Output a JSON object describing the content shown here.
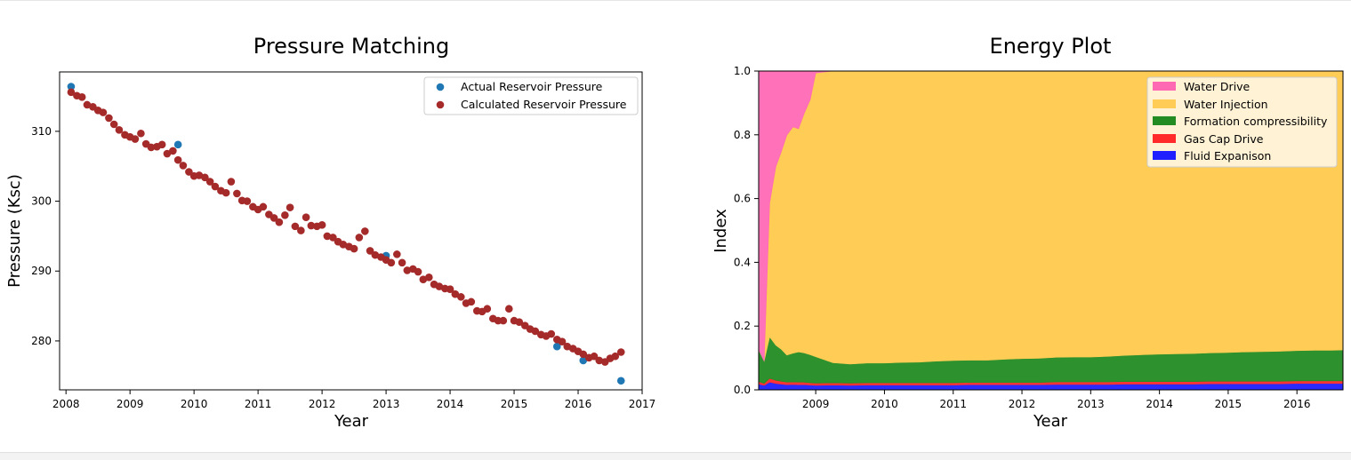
{
  "chart_data": [
    {
      "type": "scatter",
      "title": "Pressure Matching",
      "xlabel": "Year",
      "ylabel": "Pressure (Ksc)",
      "xlim": [
        2007.9,
        2017.0
      ],
      "ylim": [
        273.0,
        318.5
      ],
      "x_ticks": [
        2008,
        2009,
        2010,
        2011,
        2012,
        2013,
        2014,
        2015,
        2016,
        2017
      ],
      "y_ticks": [
        280,
        290,
        300,
        310
      ],
      "legend_position": "top-right",
      "series": [
        {
          "name": "Actual Reservoir Pressure",
          "color": "#1f77b4",
          "x": [
            2008.08,
            2009.75,
            2013.0,
            2015.67,
            2016.08,
            2016.67
          ],
          "y": [
            316.4,
            308.1,
            292.2,
            279.2,
            277.2,
            274.3
          ]
        },
        {
          "name": "Calculated Reservoir Pressure",
          "color": "#a52a2a",
          "x": [
            2008.08,
            2008.17,
            2008.25,
            2008.33,
            2008.42,
            2008.5,
            2008.58,
            2008.67,
            2008.75,
            2008.83,
            2008.92,
            2009.0,
            2009.08,
            2009.17,
            2009.25,
            2009.33,
            2009.42,
            2009.5,
            2009.58,
            2009.67,
            2009.75,
            2009.83,
            2009.92,
            2010.0,
            2010.08,
            2010.17,
            2010.25,
            2010.33,
            2010.42,
            2010.5,
            2010.58,
            2010.67,
            2010.75,
            2010.83,
            2010.92,
            2011.0,
            2011.08,
            2011.17,
            2011.25,
            2011.33,
            2011.42,
            2011.5,
            2011.58,
            2011.67,
            2011.75,
            2011.83,
            2011.92,
            2012.0,
            2012.08,
            2012.17,
            2012.25,
            2012.33,
            2012.42,
            2012.5,
            2012.58,
            2012.67,
            2012.75,
            2012.83,
            2012.92,
            2013.0,
            2013.08,
            2013.17,
            2013.25,
            2013.33,
            2013.42,
            2013.5,
            2013.58,
            2013.67,
            2013.75,
            2013.83,
            2013.92,
            2014.0,
            2014.08,
            2014.17,
            2014.25,
            2014.33,
            2014.42,
            2014.5,
            2014.58,
            2014.67,
            2014.75,
            2014.83,
            2014.92,
            2015.0,
            2015.08,
            2015.17,
            2015.25,
            2015.33,
            2015.42,
            2015.5,
            2015.58,
            2015.67,
            2015.75,
            2015.83,
            2015.92,
            2016.0,
            2016.08,
            2016.17,
            2016.25,
            2016.33,
            2016.42,
            2016.5,
            2016.58,
            2016.67
          ],
          "y": [
            315.6,
            315.1,
            314.9,
            313.8,
            313.5,
            313.0,
            312.7,
            311.9,
            311.0,
            310.2,
            309.5,
            309.2,
            308.9,
            309.7,
            308.2,
            307.7,
            307.8,
            308.1,
            306.8,
            307.2,
            305.9,
            305.1,
            304.2,
            303.6,
            303.7,
            303.4,
            302.8,
            302.1,
            301.5,
            301.2,
            302.8,
            301.1,
            300.1,
            300.0,
            299.2,
            298.8,
            299.2,
            298.1,
            297.6,
            297.0,
            298.0,
            299.1,
            296.4,
            295.8,
            297.7,
            296.5,
            296.4,
            296.6,
            295.0,
            294.8,
            294.2,
            293.8,
            293.5,
            293.2,
            294.8,
            295.7,
            292.9,
            292.3,
            292.0,
            291.6,
            291.2,
            292.4,
            291.2,
            290.1,
            290.3,
            289.9,
            288.8,
            289.1,
            288.1,
            287.8,
            287.5,
            287.4,
            286.7,
            286.3,
            285.4,
            285.6,
            284.3,
            284.2,
            284.6,
            283.2,
            282.9,
            282.9,
            284.6,
            282.9,
            282.7,
            282.2,
            281.7,
            281.4,
            280.9,
            280.7,
            281.0,
            280.2,
            279.9,
            279.2,
            278.9,
            278.5,
            278.1,
            277.6,
            277.8,
            277.2,
            277.0,
            277.5,
            277.8,
            278.4
          ]
        }
      ]
    },
    {
      "type": "area",
      "title": "Energy Plot",
      "xlabel": "Year",
      "ylabel": "Index",
      "xlim": [
        2008.17,
        2016.67
      ],
      "ylim": [
        0.0,
        1.0
      ],
      "x_ticks": [
        2009,
        2010,
        2011,
        2012,
        2013,
        2014,
        2015,
        2016
      ],
      "y_ticks": [
        "0.0",
        "0.2",
        "0.4",
        "0.6",
        "0.8",
        "1.0"
      ],
      "legend_position": "top-right",
      "stacked": true,
      "x": [
        2008.17,
        2008.25,
        2008.33,
        2008.42,
        2008.5,
        2008.58,
        2008.67,
        2008.75,
        2008.83,
        2008.92,
        2009.0,
        2009.25,
        2009.5,
        2009.75,
        2010.0,
        2010.25,
        2010.5,
        2010.75,
        2011.0,
        2011.25,
        2011.5,
        2011.75,
        2012.0,
        2012.25,
        2012.5,
        2012.75,
        2013.0,
        2013.25,
        2013.5,
        2013.75,
        2014.0,
        2014.25,
        2014.5,
        2014.75,
        2015.0,
        2015.25,
        2015.5,
        2015.75,
        2016.0,
        2016.25,
        2016.5,
        2016.67
      ],
      "series": [
        {
          "name": "Fluid Expanison",
          "color": "#1f1fff",
          "values": [
            0.018,
            0.014,
            0.024,
            0.02,
            0.018,
            0.016,
            0.017,
            0.016,
            0.016,
            0.015,
            0.014,
            0.015,
            0.014,
            0.015,
            0.015,
            0.015,
            0.015,
            0.015,
            0.015,
            0.016,
            0.016,
            0.016,
            0.016,
            0.016,
            0.017,
            0.017,
            0.017,
            0.017,
            0.018,
            0.018,
            0.018,
            0.018,
            0.018,
            0.019,
            0.019,
            0.019,
            0.019,
            0.019,
            0.02,
            0.02,
            0.02,
            0.02
          ]
        },
        {
          "name": "Gas Cap Drive",
          "color": "#ff2a2a",
          "values": [
            0.008,
            0.006,
            0.012,
            0.01,
            0.009,
            0.008,
            0.008,
            0.008,
            0.008,
            0.007,
            0.007,
            0.007,
            0.007,
            0.007,
            0.007,
            0.007,
            0.007,
            0.007,
            0.007,
            0.007,
            0.007,
            0.007,
            0.007,
            0.007,
            0.008,
            0.008,
            0.008,
            0.008,
            0.008,
            0.008,
            0.008,
            0.008,
            0.008,
            0.008,
            0.008,
            0.008,
            0.008,
            0.008,
            0.008,
            0.008,
            0.008,
            0.008
          ]
        },
        {
          "name": "Formation compressibility",
          "color": "#228b22",
          "values": [
            0.1,
            0.07,
            0.13,
            0.11,
            0.1,
            0.085,
            0.09,
            0.095,
            0.092,
            0.088,
            0.083,
            0.063,
            0.06,
            0.062,
            0.062,
            0.064,
            0.065,
            0.068,
            0.07,
            0.07,
            0.07,
            0.073,
            0.075,
            0.076,
            0.077,
            0.078,
            0.078,
            0.08,
            0.082,
            0.084,
            0.086,
            0.087,
            0.088,
            0.089,
            0.09,
            0.092,
            0.093,
            0.094,
            0.095,
            0.096,
            0.096,
            0.097
          ]
        },
        {
          "name": "Water Injection",
          "color": "#ffcc55",
          "values": [
            0.0,
            0.0,
            0.42,
            0.56,
            0.62,
            0.69,
            0.71,
            0.7,
            0.75,
            0.8,
            0.89,
            0.915,
            0.919,
            0.916,
            0.916,
            0.914,
            0.913,
            0.91,
            0.908,
            0.907,
            0.907,
            0.904,
            0.902,
            0.901,
            0.898,
            0.897,
            0.897,
            0.895,
            0.892,
            0.89,
            0.888,
            0.887,
            0.886,
            0.884,
            0.883,
            0.881,
            0.88,
            0.879,
            0.877,
            0.876,
            0.876,
            0.875
          ]
        },
        {
          "name": "Water Drive",
          "color": "#ff69b4",
          "values": [
            0.874,
            0.91,
            0.414,
            0.3,
            0.253,
            0.201,
            0.175,
            0.181,
            0.134,
            0.09,
            0.006,
            0.0,
            0.0,
            0.0,
            0.0,
            0.0,
            0.0,
            0.0,
            0.0,
            0.0,
            0.0,
            0.0,
            0.0,
            0.0,
            0.0,
            0.0,
            0.0,
            0.0,
            0.0,
            0.0,
            0.0,
            0.0,
            0.0,
            0.0,
            0.0,
            0.0,
            0.0,
            0.0,
            0.0,
            0.0,
            0.0,
            0.0
          ]
        }
      ]
    }
  ]
}
